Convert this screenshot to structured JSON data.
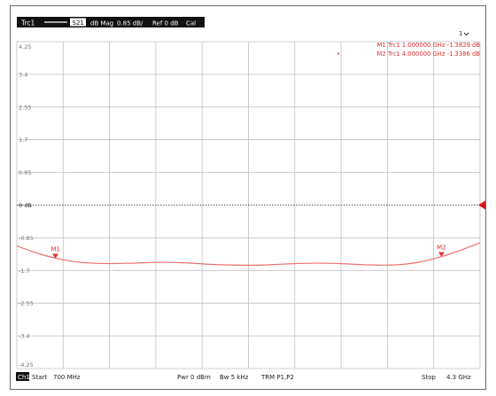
{
  "header": {
    "trace": "Trc1",
    "parameter": "S21",
    "format": "dB Mag",
    "scale": "0.85 dB/",
    "reference": "Ref 0 dB",
    "cal": "Cal",
    "window_number": "1"
  },
  "footer": {
    "channel": "Ch1",
    "start_label": "Start",
    "start_value": "700 MHz",
    "power": "Pwr  0 dBm",
    "bandwidth": "Bw  5 kHz",
    "trm": "TRM P1,P2",
    "stop_label": "Stop",
    "stop_value": "4.3 GHz"
  },
  "colors": {
    "trace": "#f07070",
    "marker": "#e03030",
    "reference": "#e01010",
    "grid": "#c0c0c0",
    "header_bg": "#111111"
  },
  "markers": [
    {
      "label": "M1",
      "readout": "M1  Trc1  1.000000  GHz   -1.3829  dB",
      "x": 1.0,
      "y": -1.3829,
      "active": false
    },
    {
      "label": "M2",
      "readout": "M2  Trc1  4.000000  GHz   -1.3386  dB",
      "x": 4.0,
      "y": -1.3386,
      "active": true
    }
  ],
  "chart_data": {
    "type": "line",
    "xlabel": "",
    "ylabel": "",
    "xlim": [
      0.7,
      4.3
    ],
    "ylim": [
      -4.25,
      4.25
    ],
    "x_unit": "GHz",
    "y_unit": "dB",
    "grid": true,
    "x_divisions": 10,
    "ytick_values": [
      4.25,
      3.4,
      2.55,
      1.7,
      0.85,
      0,
      -0.85,
      -1.7,
      -2.55,
      -3.4,
      -4.25
    ],
    "ytick_labels": [
      "4.25",
      "3.4",
      "2.55",
      "1.7",
      "0.85",
      "0 dB",
      "-0.85",
      "-1.7",
      "-2.55",
      "-3.4",
      "-4.25"
    ],
    "reference_level": 0,
    "series": [
      {
        "name": "",
        "x": [
          0.7,
          0.85,
          1.0,
          1.2,
          1.4,
          1.6,
          1.8,
          2.0,
          2.2,
          2.4,
          2.6,
          2.8,
          3.0,
          3.2,
          3.4,
          3.6,
          3.8,
          4.0,
          4.15,
          4.3
        ],
        "y": [
          -1.06,
          -1.24,
          -1.38,
          -1.49,
          -1.52,
          -1.51,
          -1.49,
          -1.5,
          -1.54,
          -1.56,
          -1.56,
          -1.53,
          -1.51,
          -1.52,
          -1.55,
          -1.56,
          -1.5,
          -1.34,
          -1.17,
          -0.98
        ]
      }
    ]
  }
}
